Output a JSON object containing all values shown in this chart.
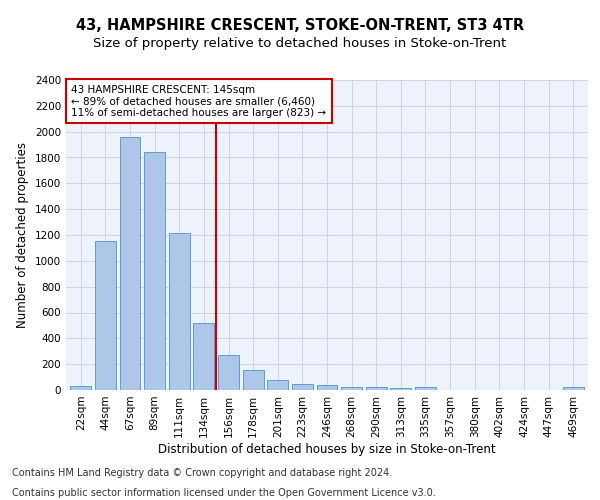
{
  "title": "43, HAMPSHIRE CRESCENT, STOKE-ON-TRENT, ST3 4TR",
  "subtitle": "Size of property relative to detached houses in Stoke-on-Trent",
  "xlabel": "Distribution of detached houses by size in Stoke-on-Trent",
  "ylabel": "Number of detached properties",
  "bar_labels": [
    "22sqm",
    "44sqm",
    "67sqm",
    "89sqm",
    "111sqm",
    "134sqm",
    "156sqm",
    "178sqm",
    "201sqm",
    "223sqm",
    "246sqm",
    "268sqm",
    "290sqm",
    "313sqm",
    "335sqm",
    "357sqm",
    "380sqm",
    "402sqm",
    "424sqm",
    "447sqm",
    "469sqm"
  ],
  "bar_values": [
    30,
    1150,
    1960,
    1840,
    1215,
    515,
    270,
    155,
    80,
    48,
    42,
    22,
    22,
    15,
    20,
    0,
    0,
    0,
    0,
    0,
    20
  ],
  "bar_color": "#aec6e8",
  "bar_edge_color": "#5a9fd4",
  "annotation_text_lines": [
    "43 HAMPSHIRE CRESCENT: 145sqm",
    "← 89% of detached houses are smaller (6,460)",
    "11% of semi-detached houses are larger (823) →"
  ],
  "vline_color": "#cc0000",
  "annotation_box_color": "#ffffff",
  "annotation_box_edge": "#cc0000",
  "ylim": [
    0,
    2400
  ],
  "yticks": [
    0,
    200,
    400,
    600,
    800,
    1000,
    1200,
    1400,
    1600,
    1800,
    2000,
    2200,
    2400
  ],
  "footer_line1": "Contains HM Land Registry data © Crown copyright and database right 2024.",
  "footer_line2": "Contains public sector information licensed under the Open Government Licence v3.0.",
  "bg_color": "#eef2fa",
  "title_fontsize": 10.5,
  "subtitle_fontsize": 9.5,
  "axis_label_fontsize": 8.5,
  "tick_fontsize": 7.5,
  "footer_fontsize": 7.0,
  "annot_fontsize": 7.5
}
